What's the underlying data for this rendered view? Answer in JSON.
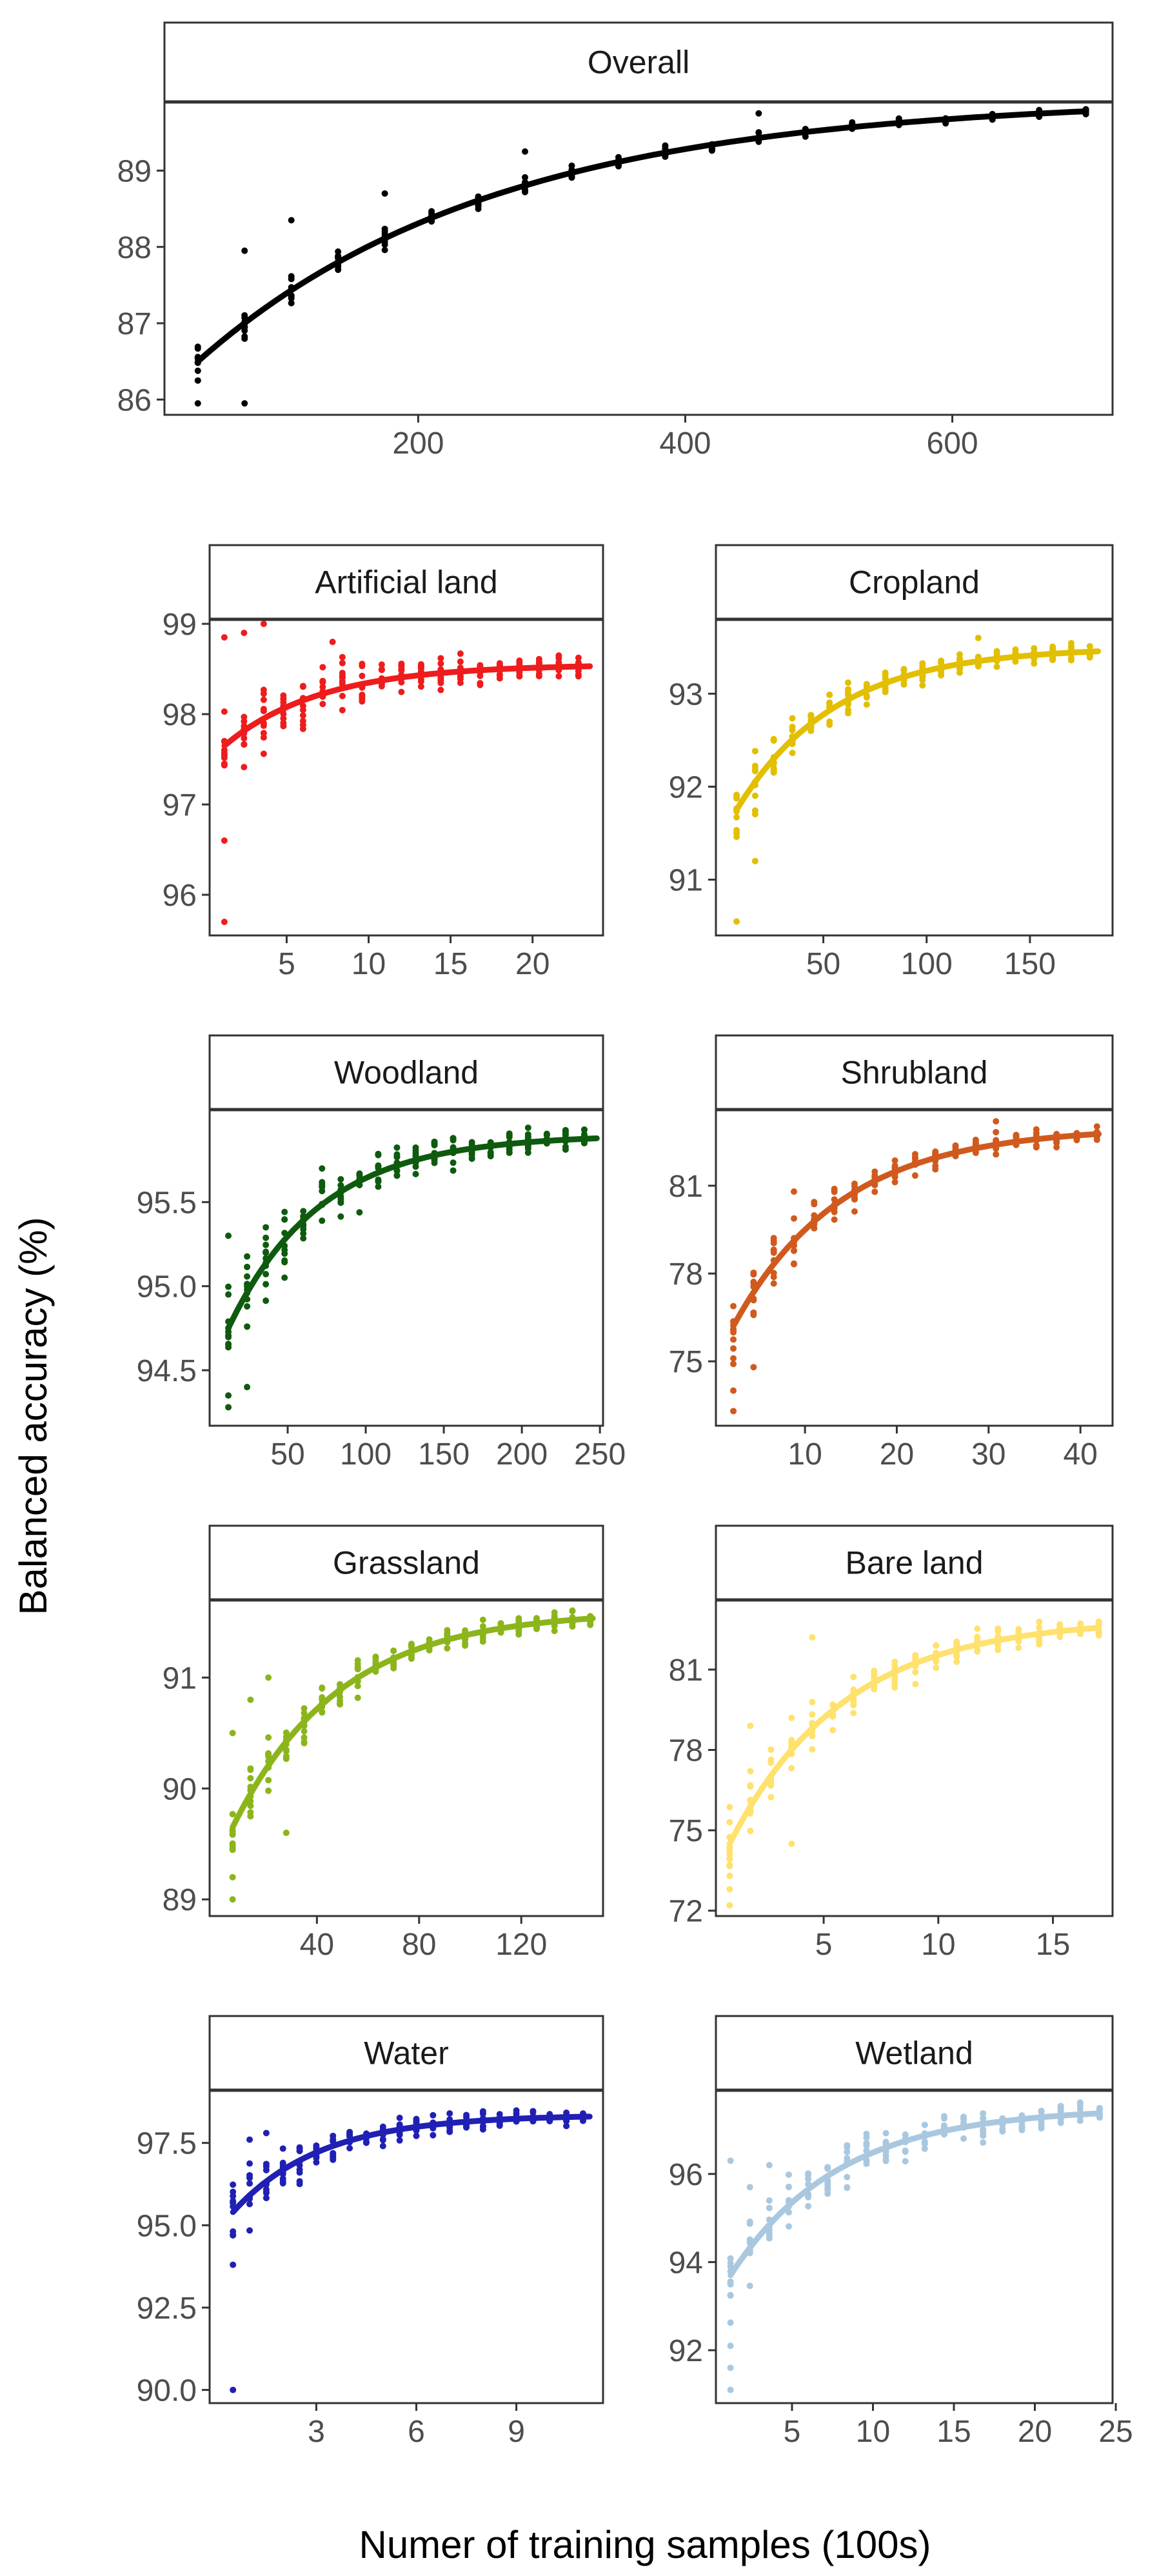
{
  "axes": {
    "ylabel": "Balanced accuracy (%)",
    "xlabel": "Numer of training samples (100s)"
  },
  "chart_data": [
    {
      "type": "scatter",
      "panel": "Overall",
      "title": "Overall",
      "color": "#000000",
      "xlim": [
        10,
        720
      ],
      "ylim": [
        85.8,
        89.9
      ],
      "xticks": [
        200,
        400,
        600
      ],
      "yticks": [
        86,
        87,
        88,
        89
      ],
      "ytick_labels": [
        "86",
        "87",
        "88",
        "89"
      ],
      "trend": {
        "x0": 35,
        "x1": 700,
        "y0": 86.5,
        "yinf": 89.95,
        "k": 0.0045
      },
      "x_levels": [
        35,
        70,
        105,
        140,
        175,
        210,
        245,
        280,
        315,
        350,
        385,
        420,
        455,
        490,
        525,
        560,
        595,
        630,
        665,
        700
      ],
      "spread": 0.42,
      "outliers": [
        [
          35,
          85.95
        ],
        [
          70,
          85.95
        ],
        [
          70,
          87.95
        ],
        [
          105,
          88.35
        ],
        [
          175,
          88.7
        ],
        [
          280,
          89.25
        ],
        [
          455,
          89.75
        ]
      ]
    },
    {
      "type": "scatter",
      "panel": "Artificial land",
      "title": "Artificial land",
      "color": "#ee1c1c",
      "xlim": [
        0.3,
        24.3
      ],
      "ylim": [
        95.55,
        99.05
      ],
      "xticks": [
        5,
        10,
        15,
        20
      ],
      "yticks": [
        96,
        97,
        98,
        99
      ],
      "ytick_labels": [
        "96",
        "97",
        "98",
        "99"
      ],
      "trend": {
        "x0": 1.2,
        "x1": 23.5,
        "y0": 97.65,
        "yinf": 98.55,
        "k": 0.17
      },
      "x_levels": [
        1.2,
        2.4,
        3.6,
        4.8,
        6,
        7.2,
        8.4,
        9.6,
        10.8,
        12,
        13.2,
        14.4,
        15.6,
        16.8,
        18,
        19.2,
        20.4,
        21.6,
        22.8
      ],
      "spread": 0.85,
      "outliers": [
        [
          1.2,
          95.7
        ],
        [
          1.2,
          96.6
        ],
        [
          1.2,
          98.85
        ],
        [
          2.4,
          98.9
        ],
        [
          3.6,
          99.0
        ],
        [
          7.8,
          98.8
        ]
      ]
    },
    {
      "type": "scatter",
      "panel": "Cropland",
      "title": "Cropland",
      "color": "#e2bf00",
      "xlim": [
        -2,
        190
      ],
      "ylim": [
        90.4,
        93.8
      ],
      "xticks": [
        50,
        100,
        150
      ],
      "yticks": [
        91,
        92,
        93
      ],
      "ytick_labels": [
        "91",
        "92",
        "93"
      ],
      "trend": {
        "x0": 8,
        "x1": 183,
        "y0": 91.75,
        "yinf": 93.5,
        "k": 0.021
      },
      "x_levels": [
        8,
        17,
        26,
        35,
        44,
        53,
        62,
        71,
        80,
        89,
        98,
        107,
        116,
        125,
        134,
        143,
        152,
        161,
        170,
        179
      ],
      "spread": 0.6,
      "outliers": [
        [
          8,
          90.55
        ],
        [
          8,
          91.5
        ],
        [
          17,
          91.2
        ],
        [
          26,
          92.5
        ],
        [
          125,
          93.6
        ]
      ]
    },
    {
      "type": "scatter",
      "panel": "Woodland",
      "title": "Woodland",
      "color": "#0e5a0e",
      "xlim": [
        0,
        252
      ],
      "ylim": [
        94.17,
        96.05
      ],
      "xticks": [
        50,
        100,
        150,
        200,
        250
      ],
      "yticks": [
        94.5,
        95.0,
        95.5
      ],
      "ytick_labels": [
        "94.5",
        "95.0",
        "95.5"
      ],
      "trend": {
        "x0": 12,
        "x1": 248,
        "y0": 94.75,
        "yinf": 95.9,
        "k": 0.017
      },
      "x_levels": [
        12,
        24,
        36,
        48,
        60,
        72,
        84,
        96,
        108,
        120,
        132,
        144,
        156,
        168,
        180,
        192,
        204,
        216,
        228,
        240
      ],
      "spread": 0.5,
      "outliers": [
        [
          12,
          94.28
        ],
        [
          12,
          94.35
        ],
        [
          24,
          94.4
        ],
        [
          12,
          95.3
        ],
        [
          36,
          95.35
        ],
        [
          72,
          95.7
        ]
      ]
    },
    {
      "type": "scatter",
      "panel": "Shrubland",
      "title": "Shrubland",
      "color": "#d05a1e",
      "xlim": [
        0.3,
        43.5
      ],
      "ylim": [
        72.8,
        83.6
      ],
      "xticks": [
        10,
        20,
        30,
        40
      ],
      "yticks": [
        75,
        78,
        81
      ],
      "ytick_labels": [
        "75",
        "78",
        "81"
      ],
      "trend": {
        "x0": 2.2,
        "x1": 42,
        "y0": 76.2,
        "yinf": 83.0,
        "k": 0.085
      },
      "x_levels": [
        2.2,
        4.4,
        6.6,
        8.8,
        11,
        13.2,
        15.4,
        17.6,
        19.8,
        22,
        24.2,
        26.4,
        28.6,
        30.8,
        33,
        35.2,
        37.4,
        39.6,
        41.8
      ],
      "spread": 2.0,
      "outliers": [
        [
          2.2,
          73.3
        ],
        [
          2.2,
          74.0
        ],
        [
          2.2,
          75.1
        ],
        [
          4.4,
          74.8
        ],
        [
          8.8,
          80.8
        ],
        [
          30.8,
          83.2
        ]
      ]
    },
    {
      "type": "scatter",
      "panel": "Grassland",
      "title": "Grassland",
      "color": "#8cb51c",
      "xlim": [
        -2,
        152
      ],
      "ylim": [
        88.85,
        91.7
      ],
      "xticks": [
        40,
        80,
        120
      ],
      "yticks": [
        89,
        90,
        91
      ],
      "ytick_labels": [
        "89",
        "90",
        "91"
      ],
      "trend": {
        "x0": 7,
        "x1": 148,
        "y0": 89.65,
        "yinf": 91.6,
        "k": 0.024
      },
      "x_levels": [
        7,
        14,
        21,
        28,
        35,
        42,
        49,
        56,
        63,
        70,
        77,
        84,
        91,
        98,
        105,
        112,
        119,
        126,
        133,
        140,
        147
      ],
      "spread": 0.55,
      "outliers": [
        [
          7,
          89.0
        ],
        [
          7,
          89.2
        ],
        [
          7,
          90.5
        ],
        [
          14,
          90.8
        ],
        [
          21,
          91.0
        ],
        [
          28,
          89.6
        ]
      ]
    },
    {
      "type": "scatter",
      "panel": "Bare land",
      "title": "Bare land",
      "color": "#ffe16e",
      "xlim": [
        0.3,
        17.6
      ],
      "ylim": [
        71.8,
        83.6
      ],
      "xticks": [
        5,
        10,
        15
      ],
      "yticks": [
        72,
        75,
        78,
        81
      ],
      "ytick_labels": [
        "72",
        "75",
        "78",
        "81"
      ],
      "trend": {
        "x0": 0.9,
        "x1": 17,
        "y0": 74.5,
        "yinf": 82.9,
        "k": 0.2
      },
      "x_levels": [
        0.9,
        1.8,
        2.7,
        3.6,
        4.5,
        5.4,
        6.3,
        7.2,
        8.1,
        9,
        9.9,
        10.8,
        11.7,
        12.6,
        13.5,
        14.4,
        15.3,
        16.2,
        17
      ],
      "spread": 2.4,
      "outliers": [
        [
          0.9,
          72.2
        ],
        [
          0.9,
          72.8
        ],
        [
          0.9,
          73.3
        ],
        [
          1.8,
          78.9
        ],
        [
          3.6,
          74.5
        ],
        [
          4.5,
          82.2
        ]
      ]
    },
    {
      "type": "scatter",
      "panel": "Water",
      "title": "Water",
      "color": "#2020b4",
      "xlim": [
        -0.2,
        11.6
      ],
      "ylim": [
        89.6,
        99.1
      ],
      "xticks": [
        3,
        6,
        9
      ],
      "yticks": [
        90.0,
        92.5,
        95.0,
        97.5
      ],
      "ytick_labels": [
        "90.0",
        "92.5",
        "95.0",
        "97.5"
      ],
      "trend": {
        "x0": 0.5,
        "x1": 11.2,
        "y0": 95.4,
        "yinf": 98.35,
        "k": 0.38
      },
      "x_levels": [
        0.5,
        1,
        1.5,
        2,
        2.5,
        3,
        3.5,
        4,
        4.5,
        5,
        5.5,
        6,
        6.5,
        7,
        7.5,
        8,
        8.5,
        9,
        9.5,
        10,
        10.5,
        11
      ],
      "spread": 1.6,
      "outliers": [
        [
          0.5,
          90.0
        ],
        [
          0.5,
          93.8
        ],
        [
          1,
          97.6
        ],
        [
          1.5,
          97.8
        ]
      ]
    },
    {
      "type": "scatter",
      "panel": "Wetland",
      "title": "Wetland",
      "color": "#a9c8e0",
      "xlim": [
        0.3,
        24.8
      ],
      "ylim": [
        90.8,
        97.9
      ],
      "xticks": [
        5,
        10,
        15,
        20,
        25
      ],
      "yticks": [
        92,
        94,
        96
      ],
      "ytick_labels": [
        "92",
        "94",
        "96"
      ],
      "trend": {
        "x0": 1.2,
        "x1": 24,
        "y0": 93.7,
        "yinf": 97.5,
        "k": 0.15
      },
      "x_levels": [
        1.2,
        2.4,
        3.6,
        4.8,
        6,
        7.2,
        8.4,
        9.6,
        10.8,
        12,
        13.2,
        14.4,
        15.6,
        16.8,
        18,
        19.2,
        20.4,
        21.6,
        22.8,
        24
      ],
      "spread": 1.8,
      "outliers": [
        [
          1.2,
          91.1
        ],
        [
          1.2,
          91.6
        ],
        [
          1.2,
          92.1
        ],
        [
          1.2,
          96.3
        ],
        [
          2.4,
          95.7
        ],
        [
          3.6,
          96.2
        ]
      ]
    }
  ]
}
